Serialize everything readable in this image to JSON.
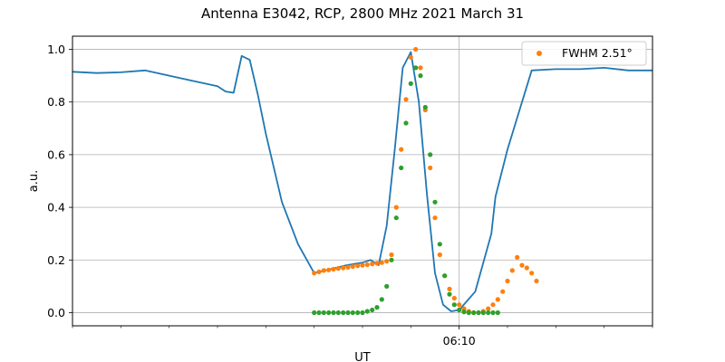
{
  "chart_data": {
    "type": "line",
    "title": "Antenna E3042, RCP, 2800 MHz 2021 March 31",
    "xlabel": "UT",
    "ylabel": "a.u.",
    "ylim": [
      -0.05,
      1.05
    ],
    "yticks": [
      0.0,
      0.2,
      0.4,
      0.6,
      0.8,
      1.0
    ],
    "ytick_labels": [
      "0.0",
      "0.2",
      "0.4",
      "0.6",
      "0.8",
      "1.0"
    ],
    "xlim": [
      "06:02:00",
      "06:14:00"
    ],
    "xticks_minor": [
      "06:02:00",
      "06:03:00",
      "06:04:00",
      "06:05:00",
      "06:06:00",
      "06:07:00",
      "06:08:00",
      "06:09:00",
      "06:10:00",
      "06:11:00",
      "06:12:00",
      "06:13:00",
      "06:14:00"
    ],
    "xticks_major": [
      {
        "x": "06:10:00",
        "label": "06:10"
      }
    ],
    "grid": true,
    "legend": {
      "position": "top-right",
      "entries": [
        {
          "label": "FWHM 2.51°",
          "color": "#ff7f0e",
          "marker": "dot"
        }
      ]
    },
    "colors": {
      "line": "#1f77b4",
      "orange": "#ff7f0e",
      "green": "#2ca02c"
    },
    "series": [
      {
        "style": "line",
        "color": "#1f77b4",
        "x": [
          "06:02:00",
          "06:02:30",
          "06:03:00",
          "06:03:30",
          "06:04:00",
          "06:04:30",
          "06:05:00",
          "06:05:10",
          "06:05:20",
          "06:05:30",
          "06:05:40",
          "06:05:50",
          "06:06:00",
          "06:06:20",
          "06:06:40",
          "06:07:00",
          "06:07:20",
          "06:07:40",
          "06:08:00",
          "06:08:10",
          "06:08:20",
          "06:08:30",
          "06:08:40",
          "06:08:50",
          "06:09:00",
          "06:09:10",
          "06:09:20",
          "06:09:30",
          "06:09:40",
          "06:09:50",
          "06:10:00",
          "06:10:20",
          "06:10:40",
          "06:10:45",
          "06:11:00",
          "06:11:30",
          "06:12:00",
          "06:12:30",
          "06:13:00",
          "06:13:30",
          "06:14:00"
        ],
        "y": [
          0.915,
          0.91,
          0.913,
          0.92,
          0.9,
          0.88,
          0.86,
          0.84,
          0.835,
          0.975,
          0.96,
          0.83,
          0.68,
          0.42,
          0.26,
          0.15,
          0.165,
          0.18,
          0.19,
          0.2,
          0.18,
          0.33,
          0.62,
          0.93,
          0.99,
          0.8,
          0.45,
          0.15,
          0.03,
          0.005,
          0.01,
          0.08,
          0.3,
          0.44,
          0.62,
          0.92,
          0.925,
          0.925,
          0.93,
          0.92,
          0.92
        ]
      },
      {
        "style": "dots",
        "color": "#ff7f0e",
        "x": [
          "06:07:00",
          "06:07:06",
          "06:07:12",
          "06:07:18",
          "06:07:24",
          "06:07:30",
          "06:07:36",
          "06:07:42",
          "06:07:48",
          "06:07:54",
          "06:08:00",
          "06:08:06",
          "06:08:12",
          "06:08:18",
          "06:08:24",
          "06:08:30",
          "06:08:36",
          "06:08:42",
          "06:08:48",
          "06:08:54",
          "06:09:00",
          "06:09:06",
          "06:09:12",
          "06:09:18",
          "06:09:24",
          "06:09:30",
          "06:09:36",
          "06:09:42",
          "06:09:48",
          "06:09:54",
          "06:10:00",
          "06:10:06",
          "06:10:12",
          "06:10:18",
          "06:10:24",
          "06:10:30",
          "06:10:36",
          "06:10:42",
          "06:10:48",
          "06:10:54",
          "06:11:00",
          "06:11:06",
          "06:11:12",
          "06:11:18",
          "06:11:24",
          "06:11:30",
          "06:11:36"
        ],
        "y": [
          0.15,
          0.155,
          0.16,
          0.162,
          0.165,
          0.168,
          0.17,
          0.172,
          0.175,
          0.178,
          0.18,
          0.182,
          0.185,
          0.188,
          0.19,
          0.195,
          0.22,
          0.4,
          0.62,
          0.81,
          0.97,
          1.0,
          0.93,
          0.77,
          0.55,
          0.36,
          0.22,
          0.14,
          0.09,
          0.055,
          0.03,
          0.015,
          0.005,
          0.0,
          0.0,
          0.005,
          0.015,
          0.03,
          0.05,
          0.08,
          0.12,
          0.16,
          0.21,
          0.18,
          0.17,
          0.15,
          0.12
        ]
      },
      {
        "style": "dots",
        "color": "#2ca02c",
        "x": [
          "06:07:00",
          "06:07:06",
          "06:07:12",
          "06:07:18",
          "06:07:24",
          "06:07:30",
          "06:07:36",
          "06:07:42",
          "06:07:48",
          "06:07:54",
          "06:08:00",
          "06:08:06",
          "06:08:12",
          "06:08:18",
          "06:08:24",
          "06:08:30",
          "06:08:36",
          "06:08:42",
          "06:08:48",
          "06:08:54",
          "06:09:00",
          "06:09:06",
          "06:09:12",
          "06:09:18",
          "06:09:24",
          "06:09:30",
          "06:09:36",
          "06:09:42",
          "06:09:48",
          "06:09:54",
          "06:10:00",
          "06:10:06",
          "06:10:12",
          "06:10:18",
          "06:10:24",
          "06:10:30",
          "06:10:36",
          "06:10:42",
          "06:10:48"
        ],
        "y": [
          0.0,
          0.0,
          0.0,
          0.0,
          0.0,
          0.0,
          0.0,
          0.0,
          0.0,
          0.0,
          0.0,
          0.005,
          0.01,
          0.02,
          0.05,
          0.1,
          0.2,
          0.36,
          0.55,
          0.72,
          0.87,
          0.93,
          0.9,
          0.78,
          0.6,
          0.42,
          0.26,
          0.14,
          0.07,
          0.03,
          0.01,
          0.003,
          0.0,
          0.0,
          0.0,
          0.0,
          0.0,
          0.0,
          0.0
        ]
      }
    ]
  }
}
